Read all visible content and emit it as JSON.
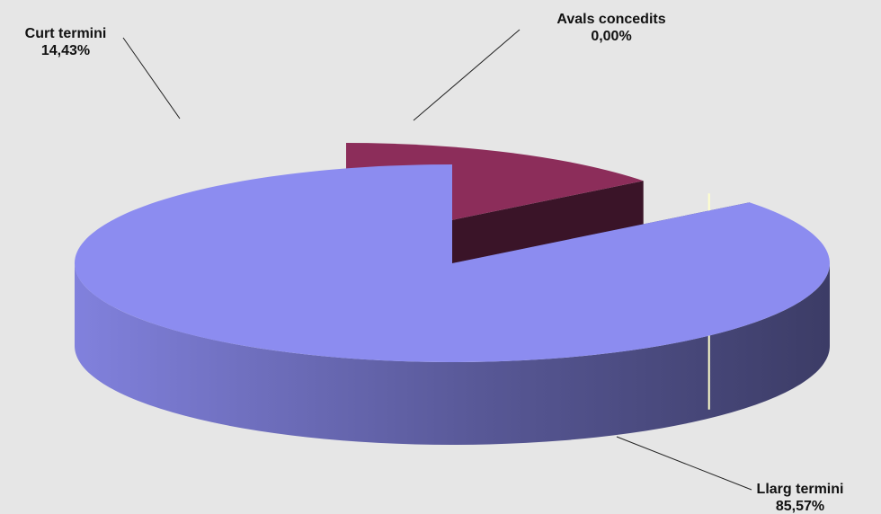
{
  "chart_data": {
    "type": "pie",
    "style": "3d-exploded",
    "categories": [
      "Curt termini",
      "Avals concedits",
      "Llarg termini"
    ],
    "values": [
      14.43,
      0.0,
      85.57
    ],
    "value_labels": [
      "14,43%",
      "0,00%",
      "85,57%"
    ],
    "colors": {
      "Curt termini": "#8c2d5a",
      "Avals concedits": "#ffffcc",
      "Llarg termini": "#8c8cf0"
    },
    "side_colors": {
      "Curt termini": "#3a1428",
      "Llarg termini": "#3c3c66"
    },
    "title": "",
    "legend": "none",
    "background": "#e6e6e6"
  }
}
